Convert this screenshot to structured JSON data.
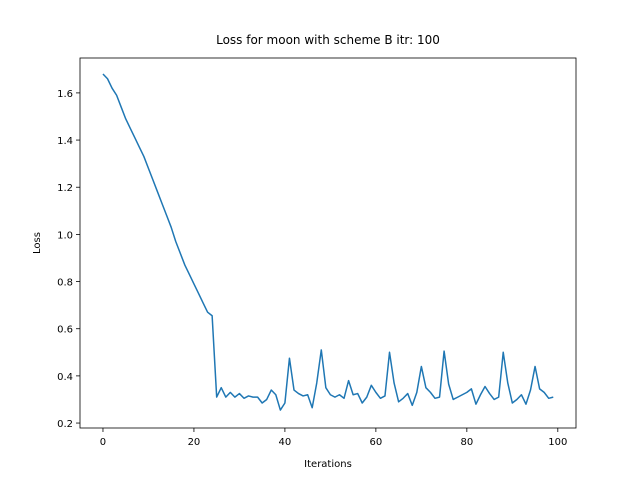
{
  "chart_data": {
    "type": "line",
    "title": "Loss for moon with scheme B itr: 100",
    "xlabel": "Iterations",
    "ylabel": "Loss",
    "x": [
      0,
      1,
      2,
      3,
      4,
      5,
      6,
      7,
      8,
      9,
      10,
      11,
      12,
      13,
      14,
      15,
      16,
      17,
      18,
      19,
      20,
      21,
      22,
      23,
      24,
      25,
      26,
      27,
      28,
      29,
      30,
      31,
      32,
      33,
      34,
      35,
      36,
      37,
      38,
      39,
      40,
      41,
      42,
      43,
      44,
      45,
      46,
      47,
      48,
      49,
      50,
      51,
      52,
      53,
      54,
      55,
      56,
      57,
      58,
      59,
      60,
      61,
      62,
      63,
      64,
      65,
      66,
      67,
      68,
      69,
      70,
      71,
      72,
      73,
      74,
      75,
      76,
      77,
      78,
      79,
      80,
      81,
      82,
      83,
      84,
      85,
      86,
      87,
      88,
      89,
      90,
      91,
      92,
      93,
      94,
      95,
      96,
      97,
      98,
      99
    ],
    "values": [
      1.68,
      1.66,
      1.62,
      1.59,
      1.54,
      1.49,
      1.45,
      1.41,
      1.37,
      1.33,
      1.28,
      1.23,
      1.18,
      1.13,
      1.08,
      1.03,
      0.97,
      0.92,
      0.87,
      0.83,
      0.79,
      0.75,
      0.71,
      0.67,
      0.655,
      0.31,
      0.35,
      0.31,
      0.33,
      0.31,
      0.325,
      0.305,
      0.315,
      0.31,
      0.31,
      0.285,
      0.3,
      0.34,
      0.32,
      0.255,
      0.285,
      0.475,
      0.34,
      0.325,
      0.315,
      0.32,
      0.265,
      0.37,
      0.51,
      0.35,
      0.32,
      0.31,
      0.32,
      0.305,
      0.38,
      0.32,
      0.325,
      0.285,
      0.31,
      0.36,
      0.33,
      0.305,
      0.315,
      0.5,
      0.37,
      0.29,
      0.305,
      0.325,
      0.275,
      0.33,
      0.44,
      0.35,
      0.33,
      0.305,
      0.31,
      0.505,
      0.365,
      0.3,
      0.31,
      0.32,
      0.33,
      0.345,
      0.28,
      0.32,
      0.355,
      0.325,
      0.3,
      0.31,
      0.5,
      0.37,
      0.285,
      0.3,
      0.32,
      0.28,
      0.34,
      0.44,
      0.345,
      0.33,
      0.305,
      0.31
    ],
    "color": "#1f77b4",
    "xlim": [
      -5.05,
      104
    ],
    "xticks": [
      0,
      20,
      40,
      60,
      80,
      100
    ],
    "ylim": [
      0.179,
      1.748
    ],
    "yticks": [
      0.2,
      0.4,
      0.6,
      0.8,
      {
        "value": 1,
        "label": "1.0"
      },
      1.2,
      1.4,
      1.6
    ]
  }
}
